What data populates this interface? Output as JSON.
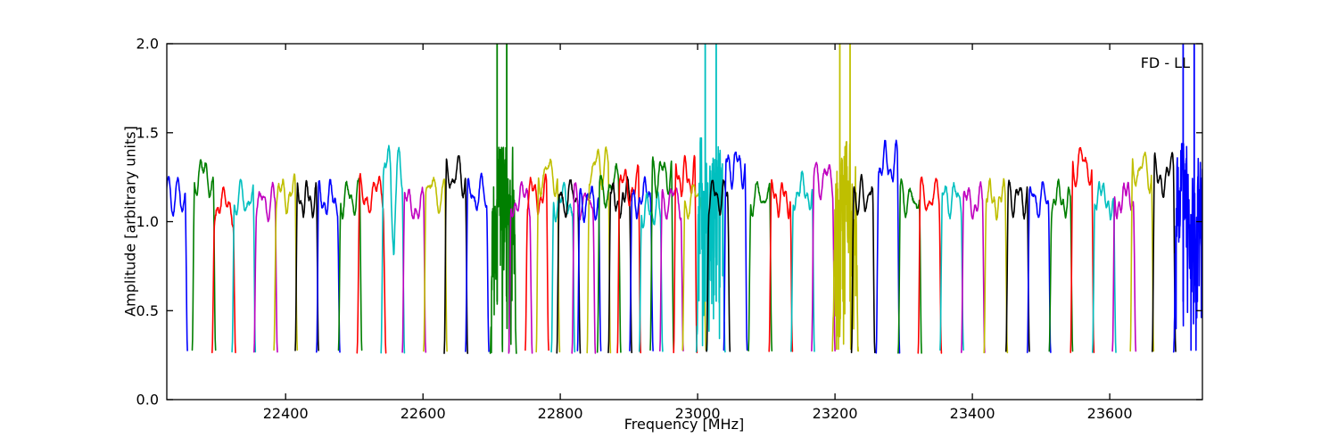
{
  "figure": {
    "background": "#ffffff"
  },
  "chart_data": {
    "type": "line",
    "title": "",
    "annotation": "FD - LL",
    "xlabel": "Frequency [MHz]",
    "ylabel": "Amplitude [arbitrary units]",
    "xlim": [
      22227,
      23735
    ],
    "ylim": [
      0.0,
      2.0
    ],
    "xticks": [
      22400,
      22600,
      22800,
      23000,
      23200,
      23400,
      23600
    ],
    "xtick_labels": [
      "22400",
      "22600",
      "22800",
      "23000",
      "23200",
      "23400",
      "23600"
    ],
    "yticks": [
      0.0,
      0.5,
      1.0,
      1.5,
      2.0
    ],
    "ytick_labels": [
      "0.0",
      "0.5",
      "1.0",
      "1.5",
      "2.0"
    ],
    "grid": false,
    "legend": null,
    "baseline_floor": 0.27,
    "line_width": 1.6,
    "frame_color": "#000000",
    "color_map": {
      "b": "#0000ff",
      "g": "#007f00",
      "r": "#ff0000",
      "c": "#00bfbf",
      "m": "#bf00bf",
      "y": "#bfbf00",
      "k": "#000000"
    },
    "subbands": [
      {
        "f": 22240,
        "col": "b",
        "p": 1.27
      },
      {
        "f": 22281,
        "col": "g",
        "p": 1.39
      },
      {
        "f": 22310,
        "col": "r",
        "p": 1.21
      },
      {
        "f": 22339,
        "col": "c",
        "p": 1.25
      },
      {
        "f": 22371,
        "col": "m",
        "p": 1.23
      },
      {
        "f": 22400,
        "col": "y",
        "p": 1.28
      },
      {
        "f": 22431,
        "col": "k",
        "p": 1.25
      },
      {
        "f": 22462,
        "col": "b",
        "p": 1.25
      },
      {
        "f": 22494,
        "col": "g",
        "p": 1.26
      },
      {
        "f": 22525,
        "col": "r",
        "p": 1.28,
        "w": 42
      },
      {
        "f": 22556,
        "col": "c",
        "p": 1.46,
        "notch": true
      },
      {
        "f": 22587,
        "col": "m",
        "p": 1.22
      },
      {
        "f": 22618,
        "col": "y",
        "p": 1.3
      },
      {
        "f": 22648,
        "col": "k",
        "p": 1.4
      },
      {
        "f": 22679,
        "col": "b",
        "p": 1.28
      },
      {
        "f": 22717,
        "col": "g",
        "p": 1.35,
        "w": 38,
        "noisy": true,
        "spikes": [
          22708,
          22722
        ]
      },
      {
        "f": 22742,
        "col": "m",
        "p": 1.25
      },
      {
        "f": 22766,
        "col": "r",
        "p": 1.28
      },
      {
        "f": 22782,
        "col": "y",
        "p": 1.41
      },
      {
        "f": 22804,
        "col": "c",
        "p": 1.24
      },
      {
        "f": 22812,
        "col": "k",
        "p": 1.26
      },
      {
        "f": 22834,
        "col": "m",
        "p": 1.23
      },
      {
        "f": 22842,
        "col": "b",
        "p": 1.24
      },
      {
        "f": 22856,
        "col": "y",
        "p": 1.46
      },
      {
        "f": 22871,
        "col": "g",
        "p": 1.33
      },
      {
        "f": 22887,
        "col": "k",
        "p": 1.26
      },
      {
        "f": 22900,
        "col": "r",
        "p": 1.33
      },
      {
        "f": 22918,
        "col": "b",
        "p": 1.26
      },
      {
        "f": 22932,
        "col": "c",
        "p": 1.18
      },
      {
        "f": 22948,
        "col": "g",
        "p": 1.41
      },
      {
        "f": 22962,
        "col": "m",
        "p": 1.25
      },
      {
        "f": 22982,
        "col": "r",
        "p": 1.39
      },
      {
        "f": 22995,
        "col": "y",
        "p": 1.25
      },
      {
        "f": 23019,
        "col": "c",
        "p": 1.4,
        "w": 42,
        "noisy": true,
        "spikes": [
          23011,
          23027
        ]
      },
      {
        "f": 23030,
        "col": "k",
        "p": 1.27
      },
      {
        "f": 23055,
        "col": "b",
        "p": 1.46
      },
      {
        "f": 23091,
        "col": "g",
        "p": 1.27
      },
      {
        "f": 23121,
        "col": "r",
        "p": 1.26
      },
      {
        "f": 23153,
        "col": "c",
        "p": 1.3
      },
      {
        "f": 23183,
        "col": "m",
        "p": 1.38
      },
      {
        "f": 23215,
        "col": "y",
        "p": 1.38,
        "w": 38,
        "noisy": true,
        "spikes": [
          23207,
          23222
        ]
      },
      {
        "f": 23241,
        "col": "k",
        "p": 1.27
      },
      {
        "f": 23277,
        "col": "b",
        "p": 1.47
      },
      {
        "f": 23309,
        "col": "g",
        "p": 1.25
      },
      {
        "f": 23338,
        "col": "r",
        "p": 1.26
      },
      {
        "f": 23370,
        "col": "c",
        "p": 1.26
      },
      {
        "f": 23401,
        "col": "m",
        "p": 1.23
      },
      {
        "f": 23434,
        "col": "y",
        "p": 1.25
      },
      {
        "f": 23466,
        "col": "k",
        "p": 1.26
      },
      {
        "f": 23497,
        "col": "b",
        "p": 1.25
      },
      {
        "f": 23529,
        "col": "g",
        "p": 1.25
      },
      {
        "f": 23560,
        "col": "r",
        "p": 1.47
      },
      {
        "f": 23592,
        "col": "c",
        "p": 1.25
      },
      {
        "f": 23621,
        "col": "m",
        "p": 1.25
      },
      {
        "f": 23647,
        "col": "y",
        "p": 1.44
      },
      {
        "f": 23679,
        "col": "k",
        "p": 1.4
      },
      {
        "f": 23714,
        "col": "b",
        "p": 1.37,
        "w": 42,
        "noisy": true,
        "open": true,
        "spikes": [
          23707,
          23723
        ]
      }
    ]
  }
}
